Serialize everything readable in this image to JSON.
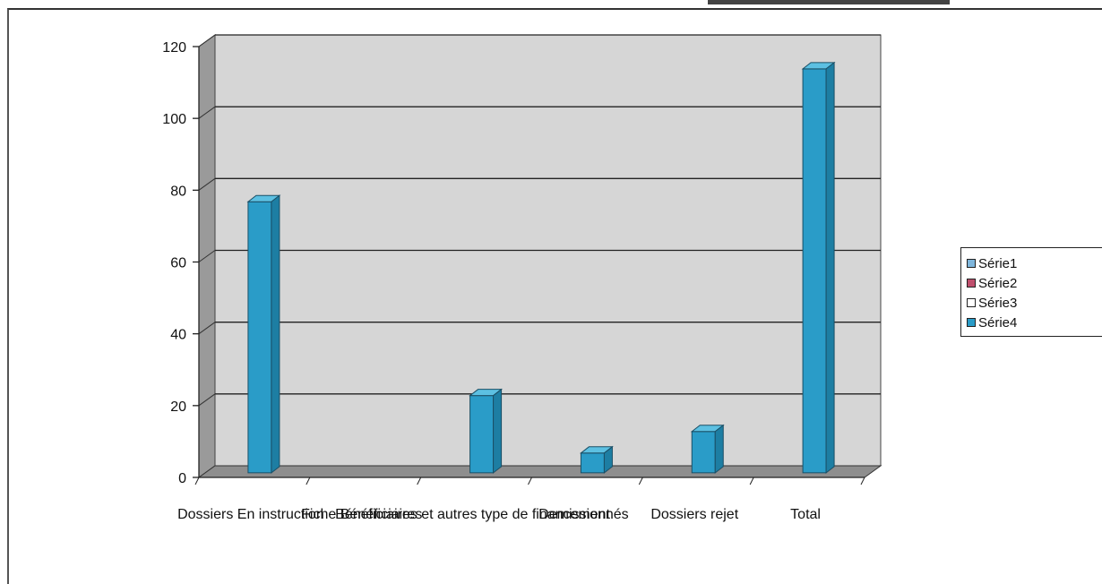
{
  "chart_data": {
    "type": "bar",
    "categories": [
      "Dossiers En instruction",
      "Fiche Bénéficiaires",
      "Bénéficiaires et autres type de financement",
      "Demissionnés",
      "Dossiers rejet",
      "Total"
    ],
    "category_labels_display": [
      "Dossiers En instruction",
      "Fiche Bénéficiaires",
      "Bénéficiaires et autres type de financement",
      "Demissionnés",
      "Dossiers rejet",
      "Total"
    ],
    "series": [
      {
        "name": "Série1",
        "color": "#7fb6dc",
        "values": [
          null,
          null,
          null,
          null,
          null,
          null
        ]
      },
      {
        "name": "Série2",
        "color": "#c0506e",
        "values": [
          null,
          null,
          null,
          null,
          null,
          null
        ]
      },
      {
        "name": "Série3",
        "color": "#ffffff",
        "values": [
          null,
          null,
          null,
          null,
          null,
          null
        ]
      },
      {
        "name": "Série4",
        "color": "#2a9cc8",
        "values": [
          75,
          null,
          21,
          5,
          11,
          112
        ]
      }
    ],
    "ylim": [
      0,
      120
    ],
    "yticks": [
      0,
      20,
      40,
      60,
      80,
      100,
      120
    ],
    "grid": true,
    "legend_position": "right",
    "style": "3d-column"
  }
}
